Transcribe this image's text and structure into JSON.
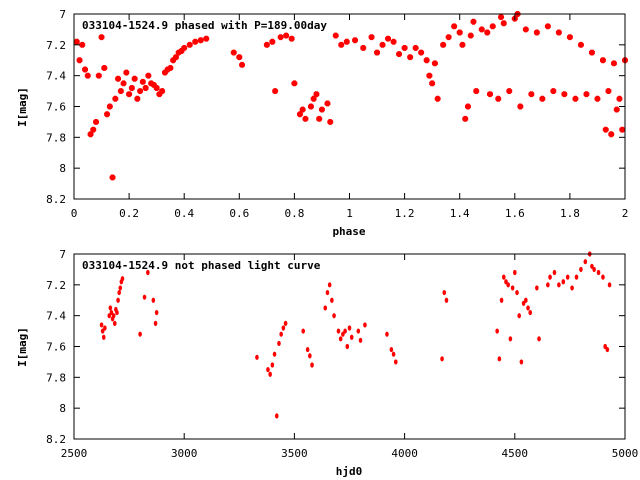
{
  "chart_data": [
    {
      "type": "scatter",
      "title": "033104-1524.9 phased with P=189.00day",
      "xlabel": "phase",
      "ylabel": "I[mag]",
      "xlim": [
        0,
        2
      ],
      "ylim": [
        8.2,
        7.0
      ],
      "y_inverted": true,
      "xticks": [
        "0",
        "0.2",
        "0.4",
        "0.6",
        "0.8",
        "1",
        "1.2",
        "1.4",
        "1.6",
        "1.8",
        "2"
      ],
      "yticks": [
        "7",
        "7.2",
        "7.4",
        "7.6",
        "7.8",
        "8",
        "8.2"
      ],
      "marker_color": "#ff0000",
      "grid": false,
      "points": [
        [
          0.01,
          7.18
        ],
        [
          0.02,
          7.3
        ],
        [
          0.03,
          7.2
        ],
        [
          0.04,
          7.36
        ],
        [
          0.05,
          7.4
        ],
        [
          0.06,
          7.78
        ],
        [
          0.07,
          7.75
        ],
        [
          0.08,
          7.7
        ],
        [
          0.09,
          7.4
        ],
        [
          0.1,
          7.15
        ],
        [
          0.11,
          7.35
        ],
        [
          0.12,
          7.65
        ],
        [
          0.13,
          7.6
        ],
        [
          0.14,
          8.06
        ],
        [
          0.15,
          7.55
        ],
        [
          0.16,
          7.42
        ],
        [
          0.17,
          7.5
        ],
        [
          0.18,
          7.45
        ],
        [
          0.19,
          7.38
        ],
        [
          0.2,
          7.52
        ],
        [
          0.21,
          7.48
        ],
        [
          0.22,
          7.42
        ],
        [
          0.23,
          7.55
        ],
        [
          0.24,
          7.5
        ],
        [
          0.25,
          7.44
        ],
        [
          0.26,
          7.48
        ],
        [
          0.27,
          7.4
        ],
        [
          0.28,
          7.45
        ],
        [
          0.29,
          7.46
        ],
        [
          0.3,
          7.48
        ],
        [
          0.31,
          7.52
        ],
        [
          0.32,
          7.5
        ],
        [
          0.33,
          7.38
        ],
        [
          0.34,
          7.36
        ],
        [
          0.35,
          7.35
        ],
        [
          0.36,
          7.3
        ],
        [
          0.37,
          7.28
        ],
        [
          0.38,
          7.25
        ],
        [
          0.39,
          7.24
        ],
        [
          0.4,
          7.22
        ],
        [
          0.42,
          7.2
        ],
        [
          0.44,
          7.18
        ],
        [
          0.46,
          7.17
        ],
        [
          0.48,
          7.16
        ],
        [
          0.58,
          7.25
        ],
        [
          0.6,
          7.28
        ],
        [
          0.61,
          7.33
        ],
        [
          0.7,
          7.2
        ],
        [
          0.72,
          7.18
        ],
        [
          0.73,
          7.5
        ],
        [
          0.75,
          7.15
        ],
        [
          0.77,
          7.14
        ],
        [
          0.79,
          7.16
        ],
        [
          0.8,
          7.45
        ],
        [
          0.82,
          7.65
        ],
        [
          0.83,
          7.62
        ],
        [
          0.84,
          7.68
        ],
        [
          0.86,
          7.6
        ],
        [
          0.87,
          7.55
        ],
        [
          0.88,
          7.52
        ],
        [
          0.89,
          7.68
        ],
        [
          0.9,
          7.62
        ],
        [
          0.92,
          7.58
        ],
        [
          0.93,
          7.7
        ],
        [
          0.95,
          7.14
        ],
        [
          0.97,
          7.2
        ],
        [
          0.99,
          7.18
        ],
        [
          1.02,
          7.17
        ],
        [
          1.05,
          7.22
        ],
        [
          1.08,
          7.15
        ],
        [
          1.1,
          7.25
        ],
        [
          1.12,
          7.2
        ],
        [
          1.14,
          7.16
        ],
        [
          1.16,
          7.18
        ],
        [
          1.18,
          7.26
        ],
        [
          1.2,
          7.22
        ],
        [
          1.22,
          7.28
        ],
        [
          1.24,
          7.22
        ],
        [
          1.26,
          7.25
        ],
        [
          1.28,
          7.3
        ],
        [
          1.29,
          7.4
        ],
        [
          1.3,
          7.45
        ],
        [
          1.31,
          7.32
        ],
        [
          1.32,
          7.55
        ],
        [
          1.34,
          7.2
        ],
        [
          1.36,
          7.15
        ],
        [
          1.38,
          7.08
        ],
        [
          1.4,
          7.12
        ],
        [
          1.41,
          7.2
        ],
        [
          1.42,
          7.68
        ],
        [
          1.43,
          7.6
        ],
        [
          1.44,
          7.14
        ],
        [
          1.45,
          7.05
        ],
        [
          1.46,
          7.5
        ],
        [
          1.48,
          7.1
        ],
        [
          1.5,
          7.12
        ],
        [
          1.51,
          7.52
        ],
        [
          1.52,
          7.08
        ],
        [
          1.54,
          7.55
        ],
        [
          1.55,
          7.02
        ],
        [
          1.56,
          7.06
        ],
        [
          1.58,
          7.5
        ],
        [
          1.6,
          7.03
        ],
        [
          1.61,
          7.0
        ],
        [
          1.62,
          7.6
        ],
        [
          1.64,
          7.1
        ],
        [
          1.66,
          7.52
        ],
        [
          1.68,
          7.12
        ],
        [
          1.7,
          7.55
        ],
        [
          1.72,
          7.08
        ],
        [
          1.74,
          7.5
        ],
        [
          1.76,
          7.12
        ],
        [
          1.78,
          7.52
        ],
        [
          1.8,
          7.15
        ],
        [
          1.82,
          7.55
        ],
        [
          1.84,
          7.2
        ],
        [
          1.86,
          7.52
        ],
        [
          1.88,
          7.25
        ],
        [
          1.9,
          7.55
        ],
        [
          1.92,
          7.3
        ],
        [
          1.93,
          7.75
        ],
        [
          1.94,
          7.5
        ],
        [
          1.95,
          7.78
        ],
        [
          1.96,
          7.32
        ],
        [
          1.97,
          7.62
        ],
        [
          1.98,
          7.55
        ],
        [
          1.99,
          7.75
        ],
        [
          2.0,
          7.3
        ]
      ]
    },
    {
      "type": "scatter",
      "title": "033104-1524.9 not phased light curve",
      "xlabel": "hjd0",
      "ylabel": "I[mag]",
      "xlim": [
        2500,
        5000
      ],
      "ylim": [
        8.2,
        7.0
      ],
      "y_inverted": true,
      "xticks": [
        "2500",
        "3000",
        "3500",
        "4000",
        "4500",
        "5000"
      ],
      "yticks": [
        "7",
        "7.2",
        "7.4",
        "7.6",
        "7.8",
        "8",
        "8.2"
      ],
      "marker_color": "#ff0000",
      "grid": false,
      "points": [
        [
          2625,
          7.46
        ],
        [
          2630,
          7.5
        ],
        [
          2635,
          7.54
        ],
        [
          2640,
          7.48
        ],
        [
          2660,
          7.4
        ],
        [
          2665,
          7.35
        ],
        [
          2670,
          7.38
        ],
        [
          2675,
          7.42
        ],
        [
          2680,
          7.4
        ],
        [
          2685,
          7.45
        ],
        [
          2690,
          7.36
        ],
        [
          2695,
          7.38
        ],
        [
          2700,
          7.3
        ],
        [
          2705,
          7.25
        ],
        [
          2710,
          7.22
        ],
        [
          2715,
          7.18
        ],
        [
          2720,
          7.16
        ],
        [
          2800,
          7.52
        ],
        [
          2820,
          7.28
        ],
        [
          2835,
          7.12
        ],
        [
          2860,
          7.3
        ],
        [
          2870,
          7.45
        ],
        [
          2875,
          7.38
        ],
        [
          3330,
          7.67
        ],
        [
          3380,
          7.75
        ],
        [
          3390,
          7.78
        ],
        [
          3400,
          7.72
        ],
        [
          3410,
          7.65
        ],
        [
          3420,
          8.05
        ],
        [
          3430,
          7.58
        ],
        [
          3440,
          7.52
        ],
        [
          3450,
          7.48
        ],
        [
          3460,
          7.45
        ],
        [
          3540,
          7.5
        ],
        [
          3560,
          7.62
        ],
        [
          3570,
          7.66
        ],
        [
          3580,
          7.72
        ],
        [
          3640,
          7.35
        ],
        [
          3650,
          7.25
        ],
        [
          3660,
          7.2
        ],
        [
          3670,
          7.3
        ],
        [
          3680,
          7.4
        ],
        [
          3700,
          7.5
        ],
        [
          3710,
          7.55
        ],
        [
          3720,
          7.52
        ],
        [
          3730,
          7.5
        ],
        [
          3740,
          7.6
        ],
        [
          3750,
          7.48
        ],
        [
          3760,
          7.54
        ],
        [
          3790,
          7.5
        ],
        [
          3800,
          7.56
        ],
        [
          3820,
          7.46
        ],
        [
          3920,
          7.52
        ],
        [
          3940,
          7.62
        ],
        [
          3950,
          7.65
        ],
        [
          3960,
          7.7
        ],
        [
          4170,
          7.68
        ],
        [
          4180,
          7.25
        ],
        [
          4190,
          7.3
        ],
        [
          4420,
          7.5
        ],
        [
          4430,
          7.68
        ],
        [
          4440,
          7.3
        ],
        [
          4450,
          7.15
        ],
        [
          4460,
          7.18
        ],
        [
          4470,
          7.2
        ],
        [
          4480,
          7.55
        ],
        [
          4490,
          7.22
        ],
        [
          4500,
          7.12
        ],
        [
          4510,
          7.25
        ],
        [
          4520,
          7.4
        ],
        [
          4530,
          7.7
        ],
        [
          4540,
          7.32
        ],
        [
          4550,
          7.3
        ],
        [
          4560,
          7.35
        ],
        [
          4570,
          7.38
        ],
        [
          4600,
          7.22
        ],
        [
          4610,
          7.55
        ],
        [
          4650,
          7.2
        ],
        [
          4660,
          7.15
        ],
        [
          4680,
          7.12
        ],
        [
          4700,
          7.2
        ],
        [
          4720,
          7.18
        ],
        [
          4740,
          7.15
        ],
        [
          4760,
          7.22
        ],
        [
          4780,
          7.15
        ],
        [
          4800,
          7.1
        ],
        [
          4820,
          7.05
        ],
        [
          4840,
          7.0
        ],
        [
          4850,
          7.08
        ],
        [
          4860,
          7.1
        ],
        [
          4880,
          7.12
        ],
        [
          4900,
          7.15
        ],
        [
          4910,
          7.6
        ],
        [
          4920,
          7.62
        ],
        [
          4930,
          7.2
        ]
      ]
    }
  ]
}
